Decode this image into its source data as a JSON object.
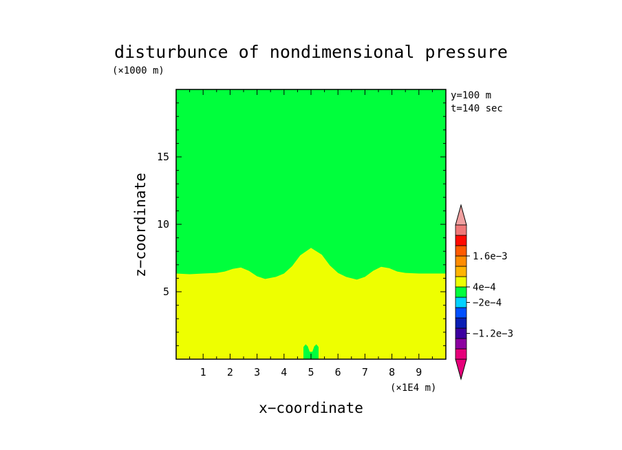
{
  "chart_data": {
    "type": "heatmap",
    "title": "disturbunce of nondimensional pressure",
    "y_unit": "(×1000 m)",
    "x_unit": "(×1E4 m)",
    "xlabel": "x−coordinate",
    "ylabel": "z−coordinate",
    "annotations": [
      "y=100 m",
      "t=140 sec"
    ],
    "xlim": [
      0,
      10
    ],
    "ylim": [
      0,
      20
    ],
    "x_ticks": [
      1,
      2,
      3,
      4,
      5,
      6,
      7,
      8,
      9
    ],
    "y_ticks": [
      5,
      10,
      15
    ],
    "regions": [
      {
        "name": "upper",
        "level_range": [
          -0.0002,
          0.0002
        ],
        "color": "#00ff3c",
        "lower_boundary": [
          [
            0.0,
            6.35
          ],
          [
            0.5,
            6.3
          ],
          [
            1.0,
            6.35
          ],
          [
            1.5,
            6.4
          ],
          [
            1.8,
            6.5
          ],
          [
            2.1,
            6.7
          ],
          [
            2.4,
            6.8
          ],
          [
            2.7,
            6.55
          ],
          [
            3.0,
            6.15
          ],
          [
            3.3,
            5.95
          ],
          [
            3.7,
            6.1
          ],
          [
            4.0,
            6.35
          ],
          [
            4.3,
            6.9
          ],
          [
            4.6,
            7.7
          ],
          [
            5.0,
            8.25
          ],
          [
            5.4,
            7.75
          ],
          [
            5.7,
            6.95
          ],
          [
            6.0,
            6.4
          ],
          [
            6.3,
            6.1
          ],
          [
            6.7,
            5.9
          ],
          [
            7.0,
            6.1
          ],
          [
            7.3,
            6.55
          ],
          [
            7.6,
            6.85
          ],
          [
            7.9,
            6.75
          ],
          [
            8.2,
            6.5
          ],
          [
            8.5,
            6.4
          ],
          [
            9.0,
            6.35
          ],
          [
            9.5,
            6.35
          ],
          [
            10.0,
            6.35
          ]
        ]
      },
      {
        "name": "lower",
        "level_range": [
          0.0002,
          0.0006
        ],
        "color": "#eeff00"
      },
      {
        "name": "surface-bumps",
        "level_range": [
          -0.0002,
          0.0002
        ],
        "color": "#00ff3c",
        "outline": [
          [
            4.72,
            0.0
          ],
          [
            4.72,
            0.9
          ],
          [
            4.8,
            1.1
          ],
          [
            4.88,
            0.95
          ],
          [
            4.95,
            0.55
          ],
          [
            5.05,
            0.55
          ],
          [
            5.12,
            0.95
          ],
          [
            5.2,
            1.1
          ],
          [
            5.28,
            0.9
          ],
          [
            5.28,
            0.0
          ]
        ]
      }
    ],
    "colorbar": {
      "colors": [
        "#e6007a",
        "#8c00a0",
        "#3c00a0",
        "#0a1eb4",
        "#0050ff",
        "#00d2ff",
        "#00ff3c",
        "#eeff00",
        "#ffb400",
        "#ff8c00",
        "#ff5a00",
        "#ff0a00",
        "#f07878"
      ],
      "end_triangle_colors": [
        "#e6007a",
        "#f0a0a0"
      ],
      "labels": [
        {
          "text": "1.6e−3",
          "level": 10
        },
        {
          "text": "4e−4",
          "level": 7
        },
        {
          "text": "−2e−4",
          "level": 5.5
        },
        {
          "text": "−1.2e−3",
          "level": 2.5
        }
      ]
    }
  }
}
